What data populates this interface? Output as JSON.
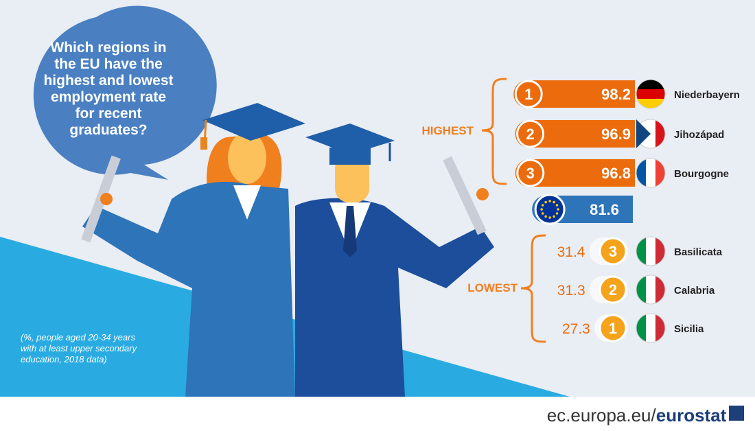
{
  "question": "Which regions in the EU have the highest and lowest employment rate for recent graduates?",
  "highest": {
    "label": "HIGHEST",
    "items": [
      {
        "rank": 1,
        "value": 98.2,
        "region": "Niederbayern",
        "flag": [
          "#000000",
          "#dd0000",
          "#ffce00"
        ]
      },
      {
        "rank": 2,
        "value": 96.9,
        "region": "Jihozápad",
        "flag": [
          "#ffffff",
          "#ffffff",
          "#d7141a"
        ]
      },
      {
        "rank": 3,
        "value": 96.8,
        "region": "Bourgogne",
        "flag": [
          "#0055a4",
          "#ffffff",
          "#ef4135"
        ]
      }
    ]
  },
  "eu": {
    "value": 81.6
  },
  "lowest": {
    "label": "LOWEST",
    "items": [
      {
        "rank": 3,
        "value": 31.4,
        "region": "Basilicata",
        "flag": [
          "#009246",
          "#ffffff",
          "#ce2b37"
        ]
      },
      {
        "rank": 2,
        "value": 31.3,
        "region": "Calabria",
        "flag": [
          "#009246",
          "#ffffff",
          "#ce2b37"
        ]
      },
      {
        "rank": 1,
        "value": 27.3,
        "region": "Sicilia",
        "flag": [
          "#009246",
          "#ffffff",
          "#ce2b37"
        ]
      }
    ]
  },
  "note": "(%, people aged 20-34 years with at least upper secondary education, 2018 data)",
  "footer": {
    "site": "ec.europa.eu/",
    "brand": "eurostat"
  }
}
